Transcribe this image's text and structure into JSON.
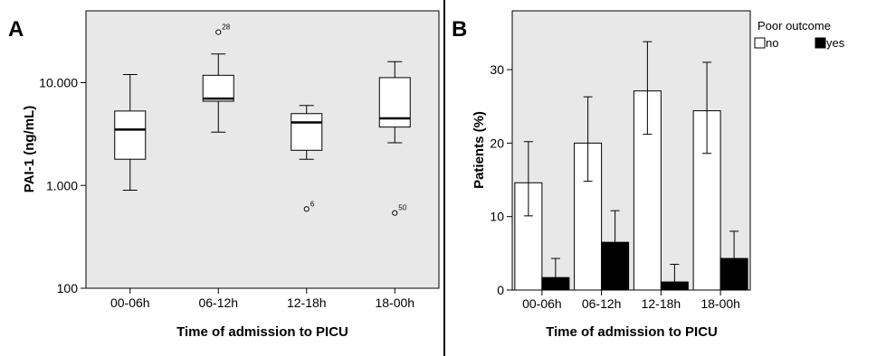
{
  "panels": {
    "a": {
      "letter": "A"
    },
    "b": {
      "letter": "B"
    }
  },
  "chart_data": [
    {
      "type": "box",
      "panel": "A",
      "xlabel": "Time of admission to PICU",
      "ylabel": "PAI-1 (ng/mL)",
      "yscale": "log",
      "ylim": [
        100,
        50000
      ],
      "yticks": [
        100,
        1000,
        10000
      ],
      "ytick_labels": [
        "100",
        "1.000",
        "10.000"
      ],
      "categories": [
        "00-06h",
        "06-12h",
        "12-18h",
        "18-00h"
      ],
      "boxes": [
        {
          "whisker_low": 900,
          "q1": 1800,
          "median": 3500,
          "q3": 5300,
          "whisker_high": 12000,
          "outliers": []
        },
        {
          "whisker_low": 3300,
          "q1": 6600,
          "median": 7000,
          "q3": 11800,
          "whisker_high": 19000,
          "outliers": [
            {
              "value": 31000,
              "label": "28"
            }
          ]
        },
        {
          "whisker_low": 1800,
          "q1": 2200,
          "median": 4100,
          "q3": 5000,
          "whisker_high": 6000,
          "outliers": [
            {
              "value": 590,
              "label": "6"
            }
          ]
        },
        {
          "whisker_low": 2600,
          "q1": 3700,
          "median": 4500,
          "q3": 11200,
          "whisker_high": 16000,
          "outliers": [
            {
              "value": 540,
              "label": "50"
            }
          ]
        }
      ],
      "grid": false
    },
    {
      "type": "bar",
      "panel": "B",
      "xlabel": "Time of admission to PICU",
      "ylabel": "Patients (%)",
      "ylim": [
        0,
        38
      ],
      "yticks": [
        0,
        10,
        20,
        30
      ],
      "categories": [
        "00-06h",
        "06-12h",
        "12-18h",
        "18-00h"
      ],
      "legend_title": "Poor outcome",
      "legend_position": "top-right",
      "series": [
        {
          "name": "no",
          "color": "#ffffff",
          "values": [
            14.6,
            20.0,
            27.1,
            24.4
          ],
          "err_low": [
            10.1,
            14.8,
            21.2,
            18.6
          ],
          "err_high": [
            20.2,
            26.3,
            33.8,
            31.0
          ]
        },
        {
          "name": "yes",
          "color": "#000000",
          "values": [
            1.7,
            6.5,
            1.1,
            4.3
          ],
          "err_low": [
            0.3,
            3.2,
            0.2,
            1.7
          ],
          "err_high": [
            4.3,
            10.8,
            3.5,
            8.0
          ]
        }
      ],
      "error_bars": true,
      "grid": false
    }
  ]
}
